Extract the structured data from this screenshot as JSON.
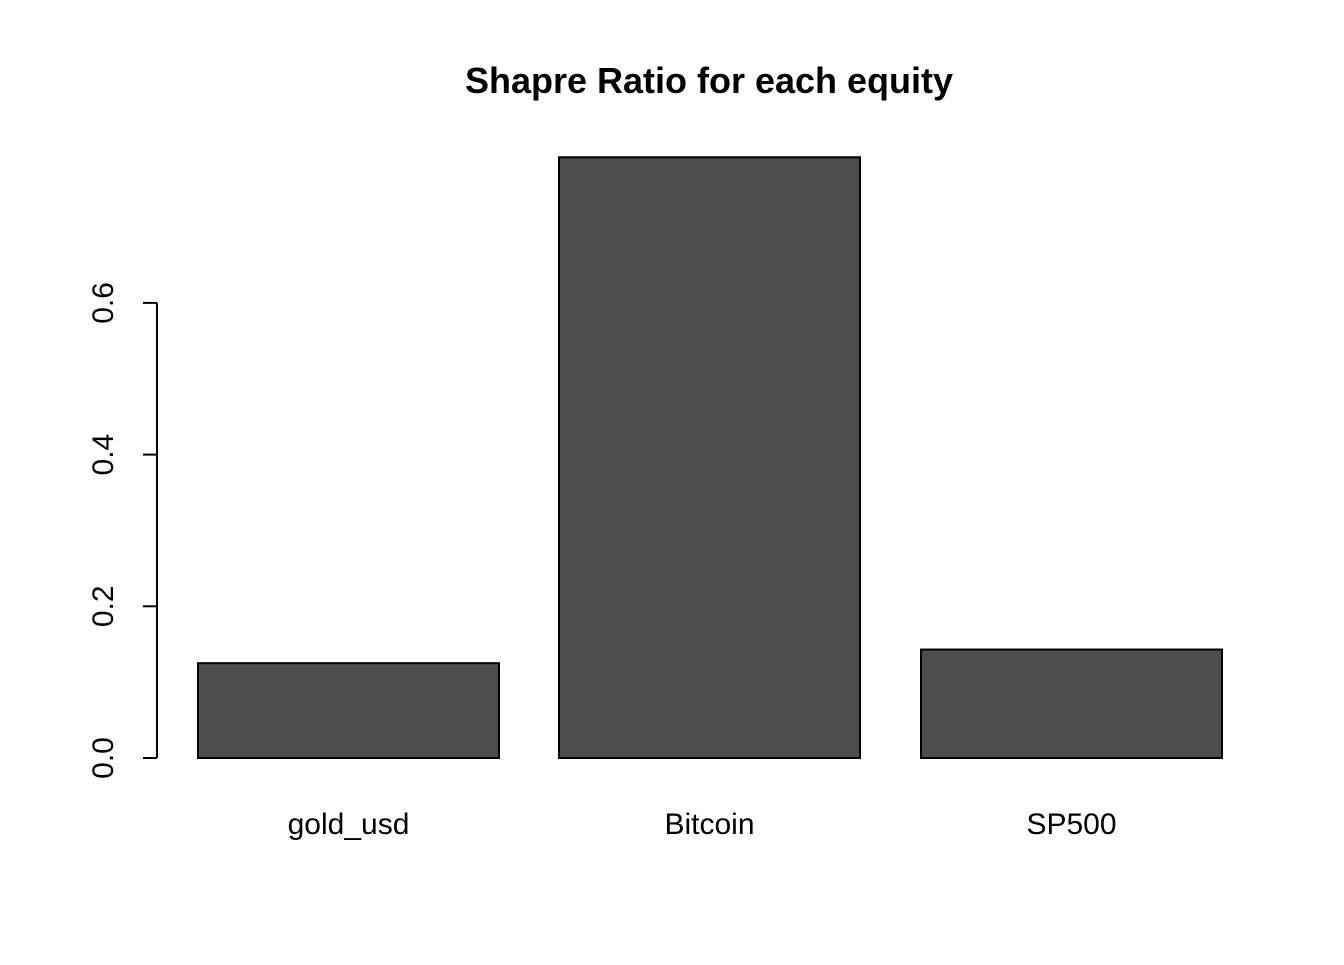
{
  "chart_data": {
    "type": "bar",
    "title": "Shapre Ratio for each equity",
    "xlabel": "",
    "ylabel": "",
    "categories": [
      "gold_usd",
      "Bitcoin",
      "SP500"
    ],
    "values": [
      0.125,
      0.792,
      0.143
    ],
    "ylim": [
      0,
      0.8
    ],
    "yticks": [
      0.0,
      0.2,
      0.4,
      0.6
    ],
    "ytick_labels": [
      "0.0",
      "0.2",
      "0.4",
      "0.6"
    ],
    "grid": false,
    "legend": "none",
    "colors": {
      "bar_fill": "#4d4d4d",
      "bar_stroke": "#000000",
      "axis": "#000000",
      "background": "#ffffff"
    }
  }
}
